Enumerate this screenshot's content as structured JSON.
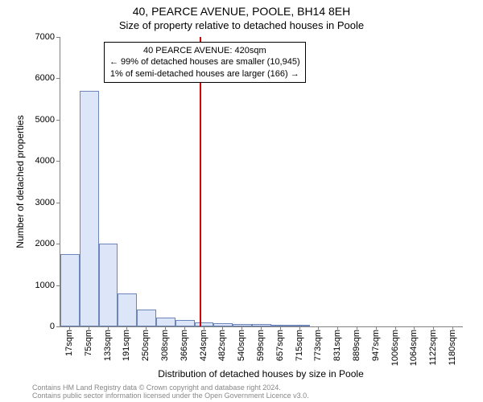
{
  "chart": {
    "type": "histogram",
    "background_color": "#ffffff",
    "title_line1": "40, PEARCE AVENUE, POOLE, BH14 8EH",
    "title_line2": "Size of property relative to detached houses in Poole",
    "title_fontsize": 14,
    "subtitle_fontsize": 13,
    "y_axis_title": "Number of detached properties",
    "x_axis_title": "Distribution of detached houses by size in Poole",
    "axis_title_fontsize": 12,
    "tick_fontsize": 11,
    "axis_line_color": "#808080",
    "bar_fill_color": "#dce6f8",
    "bar_border_color": "#6e85ba",
    "reference_line_color": "#cc0000",
    "reference_value_sqm": 420,
    "annotation_border_color": "#000000",
    "annotation_bg_color": "#ffffff",
    "annotation_fontsize": 11,
    "annotation_lines": [
      "40 PEARCE AVENUE: 420sqm",
      "← 99% of detached houses are smaller (10,945)",
      "1% of semi-detached houses are larger (166) →"
    ],
    "ylim": [
      0,
      7000
    ],
    "ytick_step": 1000,
    "yticks": [
      0,
      1000,
      2000,
      3000,
      4000,
      5000,
      6000,
      7000
    ],
    "x_tick_labels": [
      "17sqm",
      "75sqm",
      "133sqm",
      "191sqm",
      "250sqm",
      "308sqm",
      "366sqm",
      "424sqm",
      "482sqm",
      "540sqm",
      "599sqm",
      "657sqm",
      "715sqm",
      "773sqm",
      "831sqm",
      "889sqm",
      "947sqm",
      "1006sqm",
      "1064sqm",
      "1122sqm",
      "1180sqm"
    ],
    "bar_values": [
      1750,
      5700,
      2000,
      800,
      400,
      220,
      150,
      100,
      80,
      60,
      50,
      40,
      30,
      0,
      0,
      0,
      0,
      0,
      0,
      0,
      0
    ],
    "footer_line1": "Contains HM Land Registry data © Crown copyright and database right 2024.",
    "footer_line2": "Contains public sector information licensed under the Open Government Licence v3.0.",
    "footer_color": "#888888",
    "footer_fontsize": 9
  }
}
